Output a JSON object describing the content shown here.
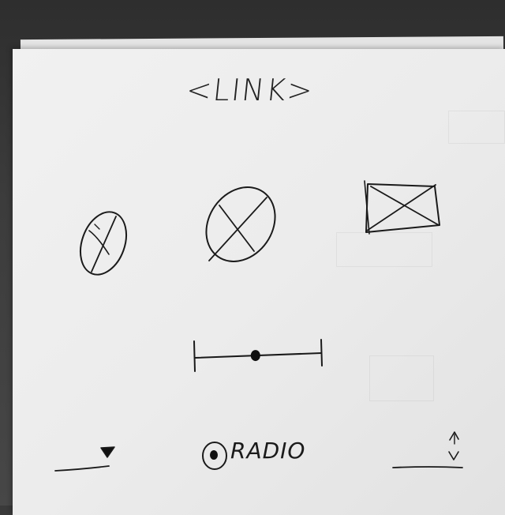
{
  "link": {
    "label": "<LINK>"
  },
  "radio": {
    "label": "RADIO",
    "selected": true
  },
  "slider": {
    "value_fraction": 0.48
  },
  "colors": {
    "ink": "#1a1a1a",
    "paper": "#ededed"
  },
  "icons": {
    "small_placeholder": "crossed-oval-icon",
    "large_placeholder": "crossed-oval-icon",
    "image_placeholder": "crossed-rectangle-icon",
    "dropdown": "triangle-down-icon",
    "stepper": "up-down-arrows-icon"
  }
}
